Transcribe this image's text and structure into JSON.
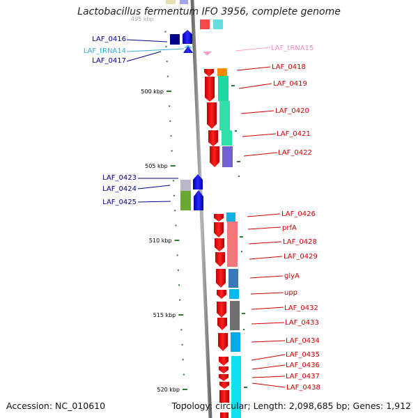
{
  "title": "Lactobacillus fermentum IFO 3956, complete genome",
  "footer": {
    "accession": "Accession: NC_010610",
    "summary": "Topology: circular; Length: 2,098,685 bp; Genes: 1,912"
  },
  "colors": {
    "axis": "#888888",
    "plus_strand": "#0000ee",
    "minus_strand": "#ee0000",
    "trna": "#66ccff",
    "trna_minus": "#f5a0c8",
    "label_plus": "#00008b",
    "label_minus": "#cc0000"
  },
  "axis_ticks": [
    {
      "label": "500 kbp",
      "kbp": 500
    },
    {
      "label": "505 kbp",
      "kbp": 505
    },
    {
      "label": "510 kbp",
      "kbp": 510
    },
    {
      "label": "515 kbp",
      "kbp": 515
    },
    {
      "label": "520 kbp",
      "kbp": 520
    }
  ],
  "top_faded_tick": "495 kbp",
  "left_genes": [
    {
      "name": "LAF_0416",
      "color": "#00008b"
    },
    {
      "name": "LAF_tRNA14",
      "color": "#33aadd"
    },
    {
      "name": "LAF_0417",
      "color": "#00008b"
    },
    {
      "name": "LAF_0423",
      "color": "#00008b"
    },
    {
      "name": "LAF_0424",
      "color": "#00008b"
    },
    {
      "name": "LAF_0425",
      "color": "#00008b"
    }
  ],
  "right_genes": [
    {
      "name": "LAF_tRNA15",
      "color": "#f090b8"
    },
    {
      "name": "LAF_0418",
      "color": "#cc0000"
    },
    {
      "name": "LAF_0419",
      "color": "#cc0000"
    },
    {
      "name": "LAF_0420",
      "color": "#cc0000"
    },
    {
      "name": "LAF_0421",
      "color": "#cc0000"
    },
    {
      "name": "LAF_0422",
      "color": "#cc0000"
    },
    {
      "name": "LAF_0426",
      "color": "#cc0000"
    },
    {
      "name": "prfA",
      "color": "#cc0000"
    },
    {
      "name": "LAF_0428",
      "color": "#cc0000"
    },
    {
      "name": "LAF_0429",
      "color": "#cc0000"
    },
    {
      "name": "glyA",
      "color": "#cc0000"
    },
    {
      "name": "upp",
      "color": "#cc0000"
    },
    {
      "name": "LAF_0432",
      "color": "#cc0000"
    },
    {
      "name": "LAF_0433",
      "color": "#cc0000"
    },
    {
      "name": "LAF_0434",
      "color": "#cc0000"
    },
    {
      "name": "LAF_0435",
      "color": "#cc0000"
    },
    {
      "name": "LAF_0436",
      "color": "#cc0000"
    },
    {
      "name": "LAF_0437",
      "color": "#cc0000"
    },
    {
      "name": "LAF_0438",
      "color": "#cc0000"
    }
  ]
}
